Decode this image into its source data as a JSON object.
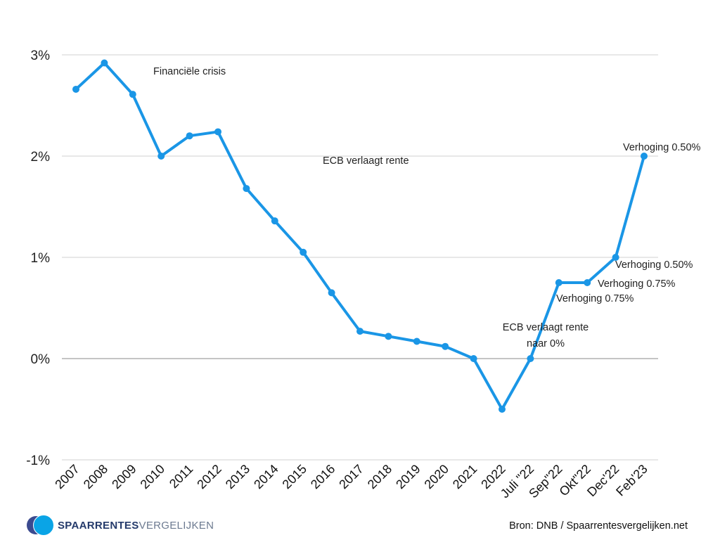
{
  "chart_data": {
    "type": "line",
    "categories": [
      "2007",
      "2008",
      "2009",
      "2010",
      "2011",
      "2012",
      "2013",
      "2014",
      "2015",
      "2016",
      "2017",
      "2018",
      "2019",
      "2020",
      "2021",
      "2022",
      "Juli \"22",
      "Sep\"22",
      "Okt\"22",
      "Dec'22",
      "Feb'23"
    ],
    "series": [
      {
        "values": [
          2.66,
          2.92,
          2.61,
          2.0,
          2.2,
          2.24,
          1.68,
          1.36,
          1.05,
          0.65,
          0.27,
          0.22,
          0.17,
          0.12,
          0.0,
          -0.5,
          0.0,
          0.75,
          0.75,
          1.0,
          2.0
        ],
        "color": "#1a96e6"
      }
    ],
    "ylim": [
      -1,
      3
    ],
    "yticks": [
      {
        "value": 3,
        "label": "3%"
      },
      {
        "value": 2,
        "label": "2%"
      },
      {
        "value": 1,
        "label": "1%"
      },
      {
        "value": 0,
        "label": "0%"
      },
      {
        "value": -1,
        "label": "-1%"
      }
    ],
    "grid": true,
    "annotations": [
      {
        "lines": [
          "Financiële crisis"
        ],
        "anchor": "start"
      },
      {
        "lines": [
          "ECB verlaagt rente"
        ],
        "anchor": "start"
      },
      {
        "lines": [
          "ECB verlaagt rente",
          "naar 0%"
        ],
        "anchor": "middle"
      },
      {
        "lines": [
          "Verhoging 0.75%"
        ],
        "anchor": "start"
      },
      {
        "lines": [
          "Verhoging 0.75%"
        ],
        "anchor": "start"
      },
      {
        "lines": [
          "Verhoging 0.50%"
        ],
        "anchor": "start"
      },
      {
        "lines": [
          "Verhoging 0.50%"
        ],
        "anchor": "start"
      }
    ]
  },
  "footer": {
    "logo_strong": "SPAARRENTES",
    "logo_light": "VERGELIJKEN",
    "source": "Bron: DNB / Spaarrentesvergelijken.net"
  },
  "colors": {
    "line": "#1a96e6",
    "grid": "#d0d0d0",
    "zero_line": "#8a8a8a"
  }
}
